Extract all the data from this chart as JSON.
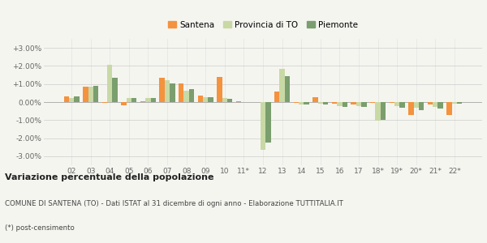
{
  "categories": [
    "02",
    "03",
    "04",
    "05",
    "06",
    "07",
    "08",
    "09",
    "10",
    "11*",
    "12",
    "13",
    "14",
    "15",
    "16",
    "17",
    "18*",
    "19*",
    "20*",
    "21*",
    "22*"
  ],
  "santena": [
    0.3,
    0.85,
    -0.05,
    -0.2,
    0.05,
    1.35,
    1.05,
    0.35,
    1.4,
    0.05,
    -0.02,
    0.6,
    -0.05,
    0.25,
    -0.1,
    -0.15,
    -0.05,
    -0.05,
    -0.7,
    -0.15,
    -0.7
  ],
  "provincia": [
    0.22,
    0.85,
    2.05,
    0.22,
    0.22,
    1.2,
    0.65,
    0.28,
    0.22,
    0.0,
    -2.65,
    1.85,
    -0.15,
    -0.1,
    -0.22,
    -0.22,
    -1.05,
    -0.22,
    -0.32,
    -0.28,
    -0.1
  ],
  "piemonte": [
    0.3,
    0.9,
    1.35,
    0.22,
    0.22,
    1.05,
    0.7,
    0.28,
    0.2,
    0.0,
    -2.25,
    1.45,
    -0.15,
    -0.15,
    -0.25,
    -0.25,
    -1.0,
    -0.32,
    -0.45,
    -0.35,
    -0.1
  ],
  "color_santena": "#f4923e",
  "color_provincia": "#c8d9a5",
  "color_piemonte": "#7a9e6e",
  "ylim": [
    -3.5,
    3.5
  ],
  "yticks": [
    -3.0,
    -2.0,
    -1.0,
    0.0,
    1.0,
    2.0,
    3.0
  ],
  "title": "Variazione percentuale della popolazione",
  "subtitle": "COMUNE DI SANTENA (TO) - Dati ISTAT al 31 dicembre di ogni anno - Elaborazione TUTTITALIA.IT",
  "footnote": "(*) post-censimento",
  "legend_labels": [
    "Santena",
    "Provincia di TO",
    "Piemonte"
  ],
  "bg_color": "#f5f5f0"
}
